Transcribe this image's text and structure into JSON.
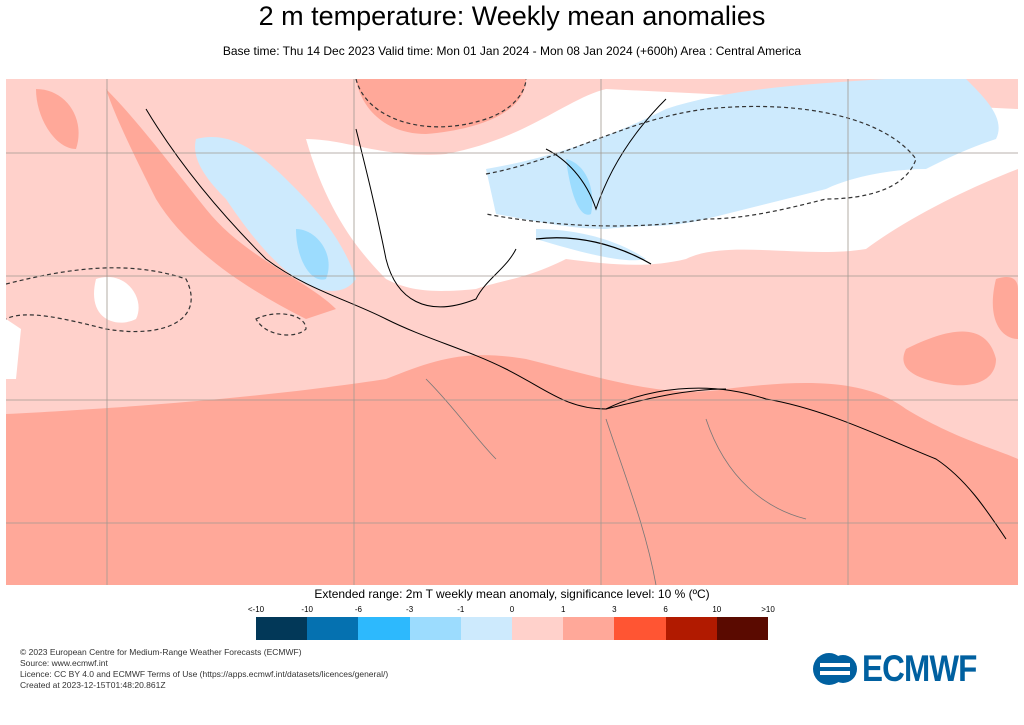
{
  "title": "2 m temperature: Weekly mean anomalies",
  "subtitle": "Base time: Thu 14 Dec 2023 Valid time: Mon 01 Jan 2024 - Mon 08 Jan 2024 (+600h) Area : Central America",
  "map": {
    "region": "Central America",
    "variable": "2m temperature weekly mean anomaly",
    "significance_contours": "dashed"
  },
  "legend": {
    "title": "Extended range: 2m T weekly mean anomaly, significance level: 10 % (ºC)",
    "labels": [
      "<-10",
      "-10",
      "-6",
      "-3",
      "-1",
      "0",
      "1",
      "3",
      "6",
      "10",
      ">10"
    ],
    "colors": [
      "#023858",
      "#0571b0",
      "#2db9fd",
      "#9cdcfe",
      "#cdeafd",
      "#ffffff",
      "#ffd1cb",
      "#ffa899",
      "#ff5533",
      "#b11a00",
      "#5a0a00"
    ]
  },
  "footer": {
    "lines": [
      "© 2023 European Centre for Medium-Range Weather Forecasts (ECMWF)",
      "Source: www.ecmwf.int",
      "Licence: CC BY 4.0 and ECMWF Terms of Use (https://apps.ecmwf.int/datasets/licences/general/)",
      "Created at 2023-12-15T01:48:20.861Z"
    ]
  },
  "logo": {
    "text": "ECMWF"
  }
}
